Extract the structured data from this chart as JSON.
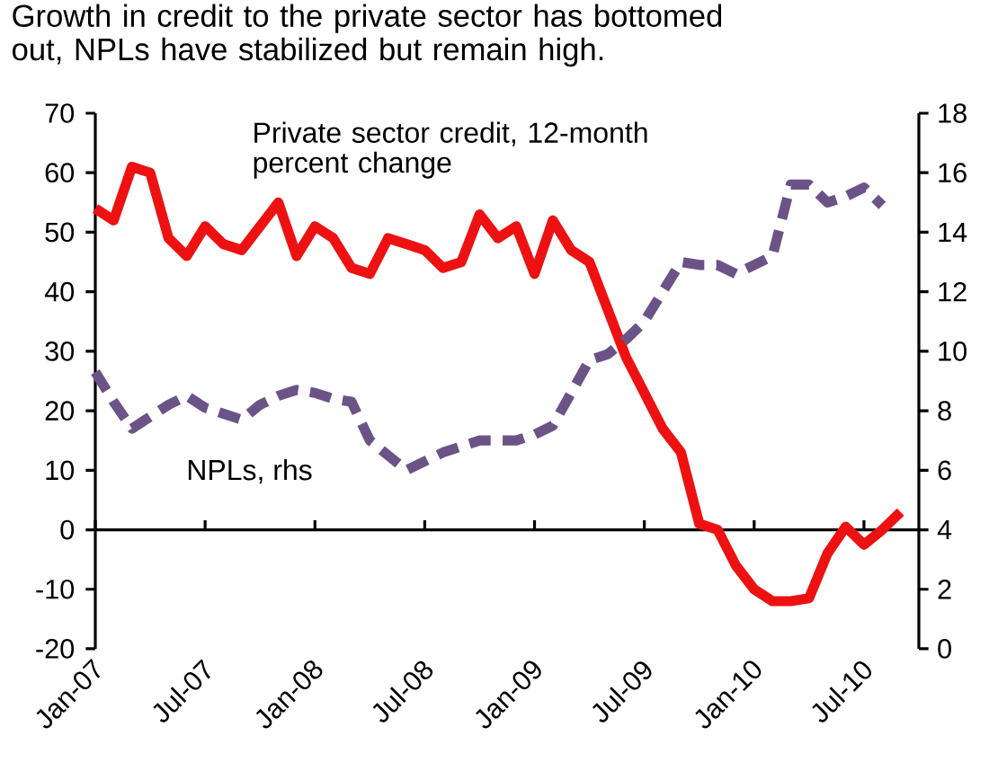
{
  "chart_data": {
    "type": "line",
    "title": "Growth in credit to the private sector has bottomed out, NPLs have stabilized but remain high.",
    "x": [
      "2007-01",
      "2007-02",
      "2007-03",
      "2007-04",
      "2007-05",
      "2007-06",
      "2007-07",
      "2007-08",
      "2007-09",
      "2007-10",
      "2007-11",
      "2007-12",
      "2008-01",
      "2008-02",
      "2008-03",
      "2008-04",
      "2008-05",
      "2008-06",
      "2008-07",
      "2008-08",
      "2008-09",
      "2008-10",
      "2008-11",
      "2008-12",
      "2009-01",
      "2009-02",
      "2009-03",
      "2009-04",
      "2009-05",
      "2009-06",
      "2009-07",
      "2009-08",
      "2009-09",
      "2009-10",
      "2009-11",
      "2009-12",
      "2010-01",
      "2010-02",
      "2010-03",
      "2010-04",
      "2010-05",
      "2010-06",
      "2010-07",
      "2010-08",
      "2010-09"
    ],
    "series": [
      {
        "name": "Private sector credit, 12-month percent change",
        "color": "#ee1111",
        "line_style": "solid",
        "values": [
          54,
          52,
          61,
          60,
          49,
          46,
          51,
          48,
          47,
          51,
          55,
          46,
          51,
          49,
          44,
          43,
          49,
          48,
          47,
          44,
          45,
          53,
          49,
          51,
          43,
          52,
          47,
          45,
          37,
          29,
          23,
          17,
          13,
          1,
          0,
          -6,
          -10,
          -12,
          -12,
          -11.5,
          -4,
          0.5,
          -2.5,
          0,
          3
        ]
      },
      {
        "name": "NPLs, rhs",
        "color": "#6b5387",
        "line_style": "dashed",
        "axis": "y2",
        "values": [
          9.3,
          8.3,
          7.4,
          7.8,
          8.2,
          8.5,
          8.1,
          7.9,
          7.7,
          8.2,
          8.5,
          8.7,
          8.6,
          8.4,
          8.3,
          7.0,
          6.5,
          6.0,
          6.3,
          6.6,
          6.8,
          7.0,
          7.0,
          7.0,
          7.2,
          7.5,
          8.6,
          9.7,
          9.9,
          10.4,
          11.0,
          12.0,
          13.0,
          12.9,
          12.9,
          12.6,
          12.9,
          13.2,
          15.6,
          15.6,
          15.0,
          15.2,
          15.5,
          14.9,
          null
        ]
      }
    ],
    "xlim": [
      "2007-01",
      "2010-10"
    ],
    "xticks": [
      {
        "value": "2007-01",
        "label": "Jan-07"
      },
      {
        "value": "2007-07",
        "label": "Jul-07"
      },
      {
        "value": "2008-01",
        "label": "Jan-08"
      },
      {
        "value": "2008-07",
        "label": "Jul-08"
      },
      {
        "value": "2009-01",
        "label": "Jan-09"
      },
      {
        "value": "2009-07",
        "label": "Jul-09"
      },
      {
        "value": "2010-01",
        "label": "Jan-10"
      },
      {
        "value": "2010-07",
        "label": "Jul-10"
      }
    ],
    "ylim": [
      -20,
      70
    ],
    "yticks": [
      -20,
      -10,
      0,
      10,
      20,
      30,
      40,
      50,
      60,
      70
    ],
    "y2lim": [
      0,
      18
    ],
    "y2ticks": [
      0,
      2,
      4,
      6,
      8,
      10,
      12,
      14,
      16,
      18
    ],
    "marker": "none"
  }
}
